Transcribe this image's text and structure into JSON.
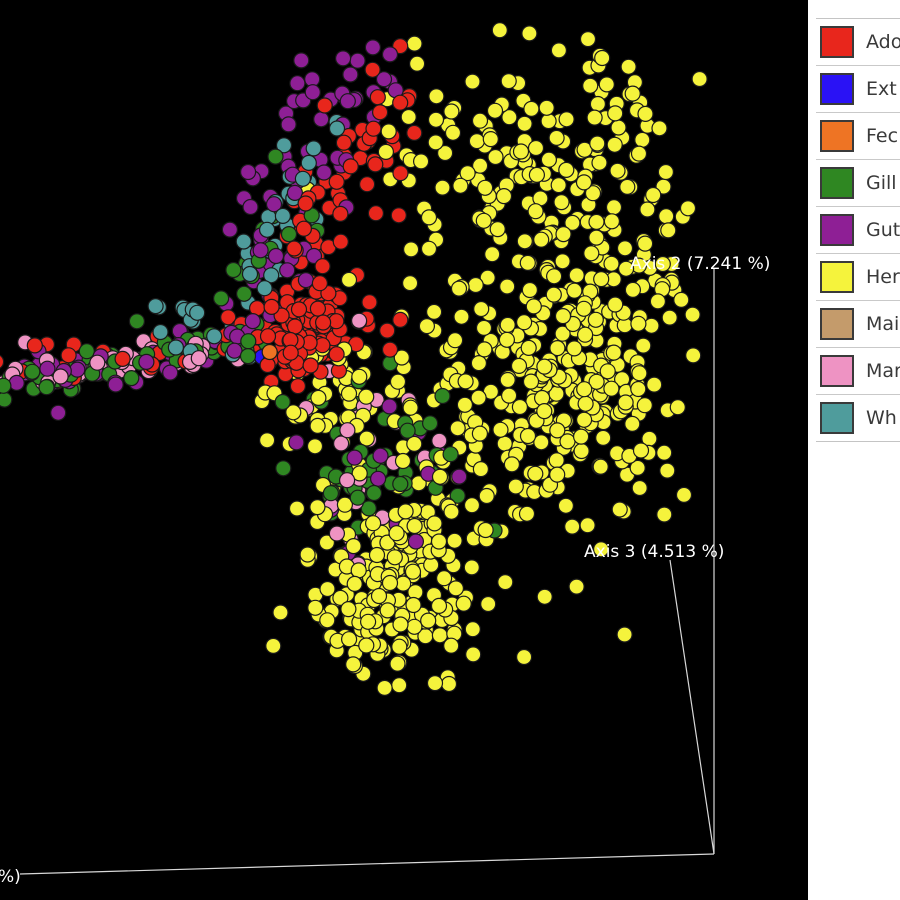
{
  "chart_data": {
    "type": "scatter",
    "title": "",
    "axes": [
      {
        "name": "axis-1",
        "label": "%)"
      },
      {
        "name": "axis-2",
        "label": "Axis 2 (7.241 %)"
      },
      {
        "name": "axis-3",
        "label": "Axis 3 (4.513 %)"
      }
    ],
    "background": "#000000",
    "legend_placement": "right",
    "series": [
      {
        "name": "Ado",
        "color": "#e8261c"
      },
      {
        "name": "Ext",
        "color": "#2a12f5"
      },
      {
        "name": "Fec",
        "color": "#ee7424"
      },
      {
        "name": "Gill",
        "color": "#2f8722"
      },
      {
        "name": "Gut",
        "color": "#8e1f95"
      },
      {
        "name": "Her",
        "color": "#f5f33c"
      },
      {
        "name": "Mai",
        "color": "#c49b6b"
      },
      {
        "name": "Mar",
        "color": "#ee93c3"
      },
      {
        "name": "Wh",
        "color": "#4f9c9c"
      }
    ]
  }
}
